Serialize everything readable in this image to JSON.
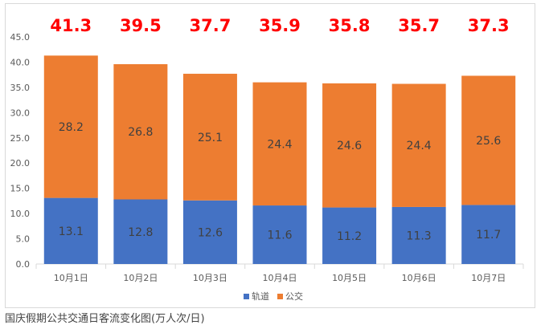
{
  "chart_data": {
    "type": "bar",
    "stacked": true,
    "categories": [
      "10月1日",
      "10月2日",
      "10月3日",
      "10月4日",
      "10月5日",
      "10月6日",
      "10月7日"
    ],
    "series": [
      {
        "name": "轨道",
        "color": "#4472C4",
        "values": [
          13.1,
          12.8,
          12.6,
          11.6,
          11.2,
          11.3,
          11.7
        ]
      },
      {
        "name": "公交",
        "color": "#ED7D31",
        "values": [
          28.2,
          26.8,
          25.1,
          24.4,
          24.6,
          24.4,
          25.6
        ]
      }
    ],
    "totals": [
      41.3,
      39.5,
      37.7,
      35.9,
      35.8,
      35.7,
      37.3
    ],
    "totals_color": "#FF0000",
    "ylim": [
      0,
      45
    ],
    "yticks": [
      "0.0",
      "5.0",
      "10.0",
      "15.0",
      "20.0",
      "25.0",
      "30.0",
      "35.0",
      "40.0",
      "45.0"
    ],
    "grid": false,
    "legend_position": "bottom"
  },
  "caption": "国庆假期公共交通日客流变化图(万人次/日)"
}
